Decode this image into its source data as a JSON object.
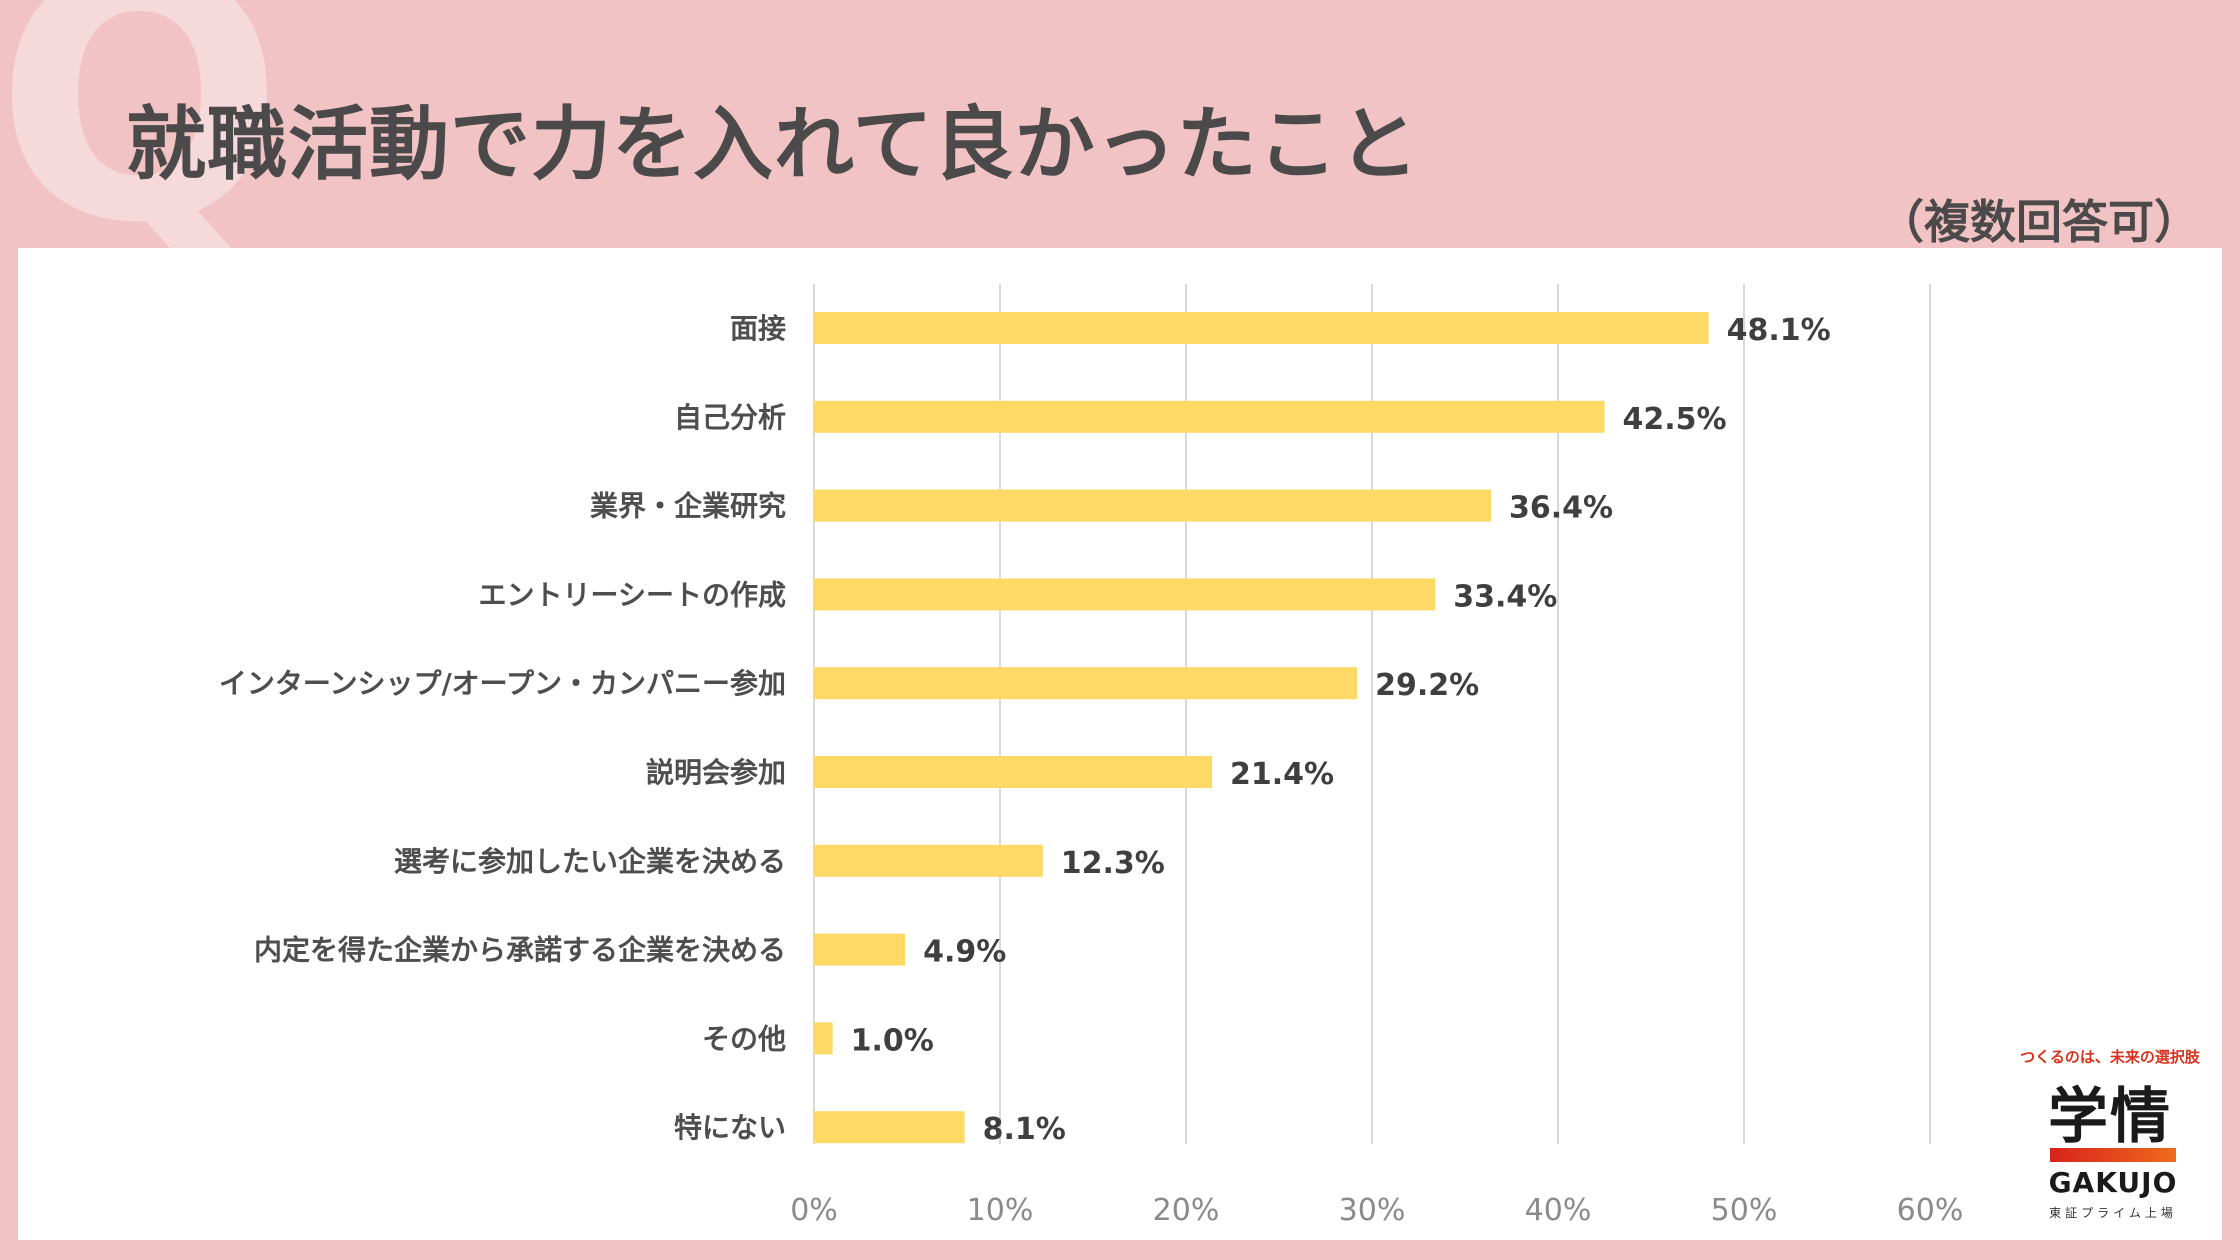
{
  "header": {
    "q_mark": "Q",
    "title": "就職活動で力を入れて良かったこと",
    "subtitle": "（複数回答可）"
  },
  "colors": {
    "background": "#f1c3c4",
    "panel": "#ffffff",
    "bar": "#ffd966",
    "grid": "#d9d9d9",
    "text": "#4b4949"
  },
  "chart_data": {
    "type": "bar",
    "orientation": "horizontal",
    "title": "就職活動で力を入れて良かったこと",
    "categories": [
      "面接",
      "自己分析",
      "業界・企業研究",
      "エントリーシートの作成",
      "インターンシップ/オープン・カンパニー参加",
      "説明会参加",
      "選考に参加したい企業を決める",
      "内定を得た企業から承諾する企業を決める",
      "その他",
      "特にない"
    ],
    "values": [
      48.1,
      42.5,
      36.4,
      33.4,
      29.2,
      21.4,
      12.3,
      4.9,
      1.0,
      8.1
    ],
    "value_labels": [
      "48.1%",
      "42.5%",
      "36.4%",
      "33.4%",
      "29.2%",
      "21.4%",
      "12.3%",
      "4.9%",
      "1.0%",
      "8.1%"
    ],
    "xlim": [
      0,
      60
    ],
    "xticks": [
      0,
      10,
      20,
      30,
      40,
      50,
      60
    ],
    "xtick_labels": [
      "0%",
      "10%",
      "20%",
      "30%",
      "40%",
      "50%",
      "60%"
    ],
    "grid": true,
    "xlabel": "",
    "ylabel": ""
  },
  "logo": {
    "tagline": "つくるのは、未来の選択肢",
    "kanji": "学情",
    "name": "GAKUJO",
    "sub": "東証プライム上場"
  }
}
